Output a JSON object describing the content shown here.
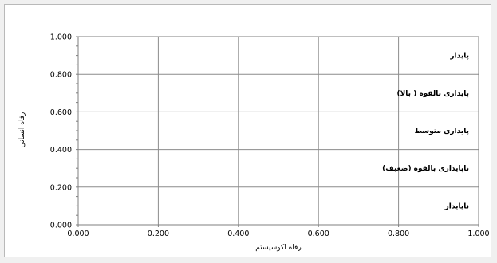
{
  "chart_data": {
    "type": "scatter",
    "title": "",
    "xlabel": "رفاه اکوسیستم",
    "ylabel": "رفاه انسانی",
    "xlim": [
      0,
      1
    ],
    "ylim": [
      0,
      1
    ],
    "x_ticks": [
      "0.000",
      "0.200",
      "0.400",
      "0.600",
      "0.800",
      "1.000"
    ],
    "y_ticks": [
      "0.000",
      "0.200",
      "0.400",
      "0.600",
      "0.800",
      "1.000"
    ],
    "grid": true,
    "series": [],
    "annotations": [
      {
        "label": "پایدار",
        "y": 0.9
      },
      {
        "label": "پایداری بالقوه ( بالا)",
        "y": 0.7
      },
      {
        "label": "پایداری متوسط",
        "y": 0.5
      },
      {
        "label": "ناپایداری بالقوه (ضعیف)",
        "y": 0.3
      },
      {
        "label": "ناپایدار",
        "y": 0.1
      }
    ]
  }
}
